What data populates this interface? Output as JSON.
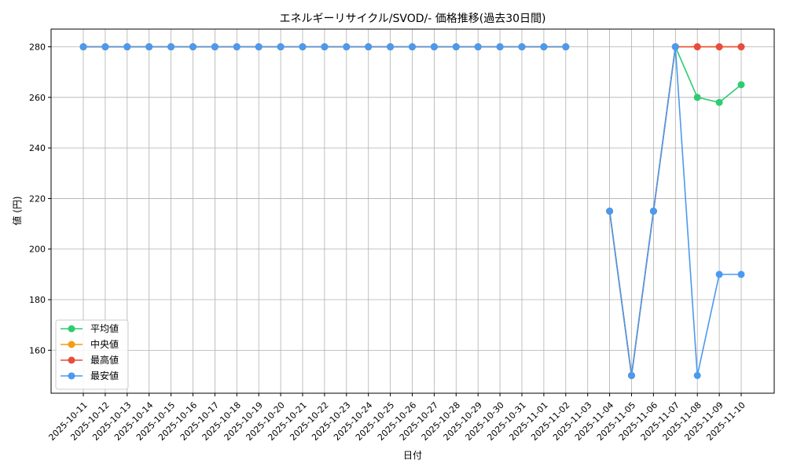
{
  "chart_data": {
    "type": "line",
    "title": "エネルギーリサイクル/SVOD/- 価格推移(過去30日間)",
    "xlabel": "日付",
    "ylabel": "値 (円)",
    "x": [
      "2025-10-11",
      "2025-10-12",
      "2025-10-13",
      "2025-10-14",
      "2025-10-15",
      "2025-10-16",
      "2025-10-17",
      "2025-10-18",
      "2025-10-19",
      "2025-10-20",
      "2025-10-21",
      "2025-10-22",
      "2025-10-23",
      "2025-10-24",
      "2025-10-25",
      "2025-10-26",
      "2025-10-27",
      "2025-10-28",
      "2025-10-29",
      "2025-10-30",
      "2025-10-31",
      "2025-11-01",
      "2025-11-02",
      "2025-11-03",
      "2025-11-04",
      "2025-11-05",
      "2025-11-06",
      "2025-11-07",
      "2025-11-08",
      "2025-11-09",
      "2025-11-10"
    ],
    "ylim": [
      143,
      287
    ],
    "yticks": [
      160,
      180,
      200,
      220,
      240,
      260,
      280
    ],
    "grid": true,
    "legend_position": "lower-left",
    "series": [
      {
        "name": "平均値",
        "color": "#2ecc71",
        "values": [
          280,
          280,
          280,
          280,
          280,
          280,
          280,
          280,
          280,
          280,
          280,
          280,
          280,
          280,
          280,
          280,
          280,
          280,
          280,
          280,
          280,
          280,
          280,
          null,
          215,
          150,
          215,
          280,
          260,
          258,
          265
        ]
      },
      {
        "name": "中央値",
        "color": "#f39c12",
        "values": [
          280,
          280,
          280,
          280,
          280,
          280,
          280,
          280,
          280,
          280,
          280,
          280,
          280,
          280,
          280,
          280,
          280,
          280,
          280,
          280,
          280,
          280,
          280,
          null,
          215,
          150,
          215,
          280,
          280,
          280,
          280
        ]
      },
      {
        "name": "最高値",
        "color": "#e74c3c",
        "values": [
          280,
          280,
          280,
          280,
          280,
          280,
          280,
          280,
          280,
          280,
          280,
          280,
          280,
          280,
          280,
          280,
          280,
          280,
          280,
          280,
          280,
          280,
          280,
          null,
          215,
          150,
          215,
          280,
          280,
          280,
          280
        ]
      },
      {
        "name": "最安値",
        "color": "#4a9af0",
        "values": [
          280,
          280,
          280,
          280,
          280,
          280,
          280,
          280,
          280,
          280,
          280,
          280,
          280,
          280,
          280,
          280,
          280,
          280,
          280,
          280,
          280,
          280,
          280,
          null,
          215,
          150,
          215,
          280,
          150,
          190,
          190
        ]
      }
    ]
  }
}
